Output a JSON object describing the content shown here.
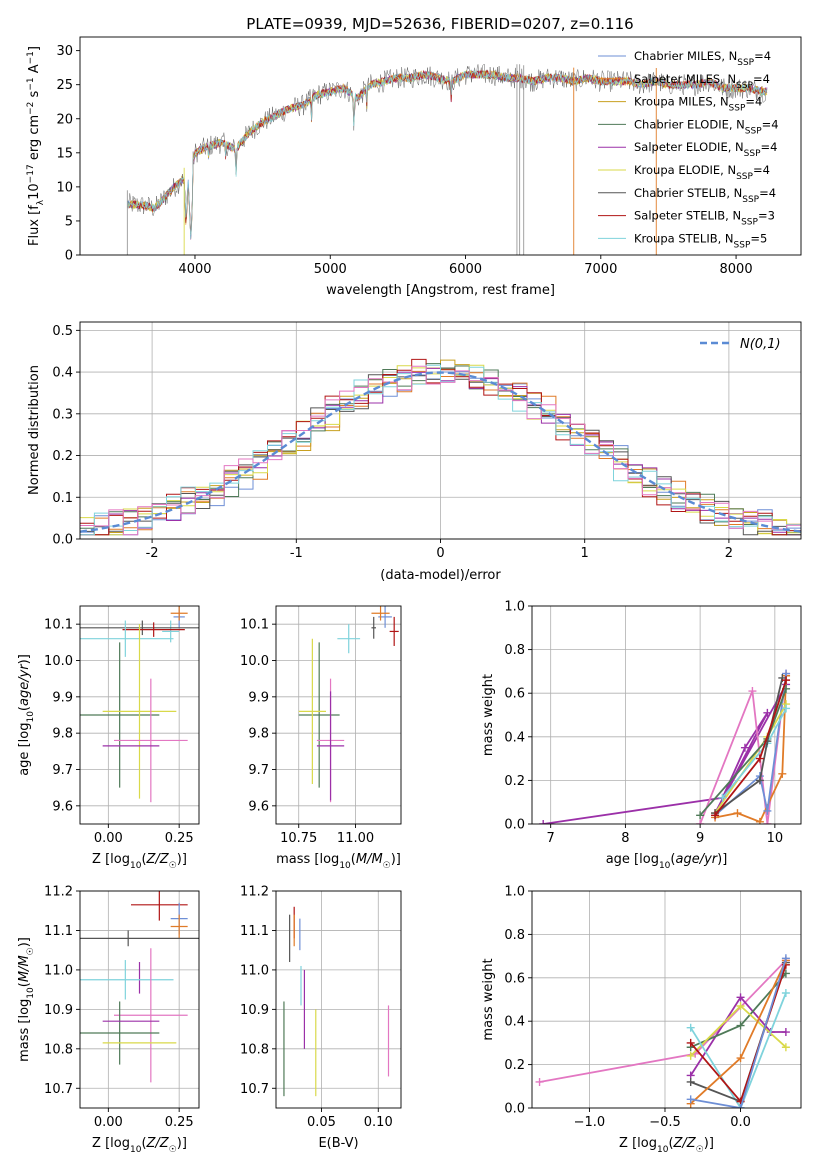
{
  "figure_title": "PLATE=0939, MJD=52636, FIBERID=0207, z=0.116",
  "colors": {
    "Chabrier MILES": "#6e8fd6",
    "Salpeter MILES": "#e07b28",
    "Kroupa MILES": "#c8a020",
    "Chabrier ELODIE": "#4f7a58",
    "Salpeter ELODIE": "#9b30a8",
    "Kroupa ELODIE": "#d9d94a",
    "Chabrier STELIB": "#555555",
    "Salpeter STELIB": "#b01515",
    "Kroupa STELIB": "#7fd3dc",
    "pink": "#e377c2",
    "normal_curve": "#5b8bd4"
  },
  "chart_data": [
    {
      "id": "spectrum",
      "type": "line",
      "xlabel": "wavelength [Angstrom, rest frame]",
      "ylabel": "Flux [f_λ 10^-17 erg cm^-2 s^-1 A^-1]",
      "xlim": [
        3150,
        8480
      ],
      "ylim": [
        0,
        32
      ],
      "xticks": [
        4000,
        5000,
        6000,
        7000,
        8000
      ],
      "yticks": [
        0,
        5,
        10,
        15,
        20,
        25,
        30
      ],
      "legend_placement": "top-right",
      "series": [
        {
          "name": "Chabrier MILES, N_SSP=4"
        },
        {
          "name": "Salpeter MILES, N_SSP=4"
        },
        {
          "name": "Kroupa MILES, N_SSP=4"
        },
        {
          "name": "Chabrier ELODIE, N_SSP=4"
        },
        {
          "name": "Salpeter ELODIE, N_SSP=4"
        },
        {
          "name": "Kroupa ELODIE, N_SSP=4"
        },
        {
          "name": "Chabrier STELIB, N_SSP=4"
        },
        {
          "name": "Salpeter STELIB, N_SSP=3"
        },
        {
          "name": "Kroupa STELIB, N_SSP=5"
        }
      ],
      "continuum": [
        [
          3500,
          7.5
        ],
        [
          3650,
          7.2
        ],
        [
          3700,
          6.8
        ],
        [
          3800,
          9.0
        ],
        [
          3900,
          11.0
        ],
        [
          3950,
          10.5
        ],
        [
          4000,
          15.0
        ],
        [
          4100,
          16.0
        ],
        [
          4200,
          16.5
        ],
        [
          4300,
          15.5
        ],
        [
          4400,
          18.0
        ],
        [
          4500,
          19.5
        ],
        [
          4600,
          20.5
        ],
        [
          4700,
          21.5
        ],
        [
          4800,
          22.0
        ],
        [
          4900,
          23.5
        ],
        [
          5000,
          24.0
        ],
        [
          5100,
          24.5
        ],
        [
          5200,
          23.0
        ],
        [
          5300,
          25.0
        ],
        [
          5400,
          25.5
        ],
        [
          5500,
          26.0
        ],
        [
          5600,
          26.0
        ],
        [
          5700,
          26.5
        ],
        [
          5800,
          26.0
        ],
        [
          5900,
          25.5
        ],
        [
          6000,
          26.5
        ],
        [
          6100,
          26.5
        ],
        [
          6200,
          26.5
        ],
        [
          6300,
          26.0
        ],
        [
          6400,
          26.0
        ],
        [
          6500,
          25.5
        ],
        [
          6600,
          26.0
        ],
        [
          6700,
          26.0
        ],
        [
          6800,
          25.5
        ],
        [
          6900,
          26.0
        ],
        [
          7000,
          25.5
        ],
        [
          7100,
          25.5
        ],
        [
          7200,
          25.5
        ],
        [
          7300,
          25.0
        ],
        [
          7400,
          25.5
        ],
        [
          7500,
          25.0
        ],
        [
          7600,
          25.0
        ],
        [
          7700,
          25.0
        ],
        [
          7800,
          25.5
        ],
        [
          7900,
          24.5
        ],
        [
          8000,
          24.5
        ],
        [
          8100,
          24.5
        ],
        [
          8200,
          24.0
        ],
        [
          8230,
          24.0
        ]
      ],
      "absorption_lines": [
        [
          3934,
          4
        ],
        [
          3969,
          2
        ],
        [
          4102,
          13.5
        ],
        [
          4227,
          14
        ],
        [
          4304,
          12
        ],
        [
          4861,
          19.5
        ],
        [
          5175,
          19
        ],
        [
          5270,
          22
        ],
        [
          5893,
          22.5
        ],
        [
          6563,
          24
        ]
      ],
      "spikes": [
        [
          3500,
          0
        ],
        [
          3920,
          0
        ],
        [
          6380,
          0
        ],
        [
          6400,
          0
        ],
        [
          6430,
          0
        ],
        [
          6800,
          0
        ],
        [
          7410,
          0
        ]
      ]
    },
    {
      "id": "residual_histogram",
      "type": "bar",
      "xlabel": "(data-model)/error",
      "ylabel": "Normed distribution",
      "xlim": [
        -2.5,
        2.5
      ],
      "ylim": [
        0,
        0.52
      ],
      "xticks": [
        -2,
        -1,
        0,
        1,
        2
      ],
      "yticks": [
        0.0,
        0.1,
        0.2,
        0.3,
        0.4,
        0.5
      ],
      "bin_width": 0.1,
      "normal_curve_label": "N(0,1)",
      "legend_placement": "top-right"
    },
    {
      "id": "age_vs_Z",
      "type": "scatter",
      "xlabel": "Z [log10(Z/Z☉)]",
      "ylabel": "age [log10(age/yr)]",
      "xlim": [
        -0.1,
        0.32
      ],
      "ylim": [
        9.55,
        10.15
      ],
      "xticks": [
        0.0,
        0.25
      ],
      "yticks": [
        9.6,
        9.7,
        9.8,
        9.9,
        10.0,
        10.1
      ],
      "points": [
        {
          "series": "Chabrier MILES",
          "x": 0.25,
          "xerr": 0.02,
          "y": 10.12,
          "yerr": 0.03
        },
        {
          "series": "Salpeter MILES",
          "x": 0.25,
          "xerr": 0.03,
          "y": 10.13,
          "yerr": 0.02
        },
        {
          "series": "Kroupa STELIB",
          "x": 0.22,
          "xerr": 0.03,
          "y": 10.08,
          "yerr": 0.03
        },
        {
          "series": "Chabrier STELIB",
          "x": 0.12,
          "xerr": 0.25,
          "y": 10.09,
          "yerr": 0.02
        },
        {
          "series": "Salpeter STELIB",
          "x": 0.16,
          "xerr": 0.11,
          "y": 10.085,
          "yerr": 0.02
        },
        {
          "series": "Kroupa STELIB",
          "x": 0.06,
          "xerr": 0.17,
          "y": 10.06,
          "yerr": 0.05
        },
        {
          "series": "Chabrier ELODIE",
          "x": 0.04,
          "xerr": 0.14,
          "y": 9.85,
          "yerr": 0.2
        },
        {
          "series": "Kroupa ELODIE",
          "x": 0.11,
          "xerr": 0.13,
          "y": 9.86,
          "yerr": 0.24
        },
        {
          "series": "pink",
          "x": 0.15,
          "xerr": 0.13,
          "y": 9.78,
          "yerr": 0.17
        },
        {
          "series": "Salpeter ELODIE",
          "x": 0.08,
          "xerr": 0.1,
          "y": 9.765,
          "yerr": 0.0
        }
      ]
    },
    {
      "id": "age_vs_mass",
      "type": "scatter",
      "xlabel": "mass [log10(M/M☉)]",
      "ylabel": "",
      "xlim": [
        10.65,
        11.2
      ],
      "ylim": [
        9.55,
        10.15
      ],
      "xticks": [
        10.75,
        11.0
      ],
      "yticks": [
        9.6,
        9.7,
        9.8,
        9.9,
        10.0,
        10.1
      ],
      "points": [
        {
          "series": "Chabrier MILES",
          "x": 11.13,
          "xerr": 0.03,
          "y": 10.12,
          "yerr": 0.03
        },
        {
          "series": "Salpeter MILES",
          "x": 11.11,
          "xerr": 0.04,
          "y": 10.13,
          "yerr": 0.02
        },
        {
          "series": "Salpeter STELIB",
          "x": 11.17,
          "xerr": 0.02,
          "y": 10.08,
          "yerr": 0.04
        },
        {
          "series": "Chabrier STELIB",
          "x": 11.08,
          "xerr": 0.01,
          "y": 10.09,
          "yerr": 0.03
        },
        {
          "series": "Kroupa STELIB",
          "x": 10.97,
          "xerr": 0.05,
          "y": 10.06,
          "yerr": 0.04
        },
        {
          "series": "Chabrier ELODIE",
          "x": 10.84,
          "xerr": 0.09,
          "y": 9.85,
          "yerr": 0.2
        },
        {
          "series": "Kroupa ELODIE",
          "x": 10.81,
          "xerr": 0.06,
          "y": 9.86,
          "yerr": 0.2
        },
        {
          "series": "pink",
          "x": 10.89,
          "xerr": 0.06,
          "y": 9.78,
          "yerr": 0.17
        },
        {
          "series": "Salpeter ELODIE",
          "x": 10.89,
          "xerr": 0.06,
          "y": 9.765,
          "yerr": 0.15
        }
      ]
    },
    {
      "id": "mass_weight_vs_age",
      "type": "line",
      "xlabel": "age [log10(age/yr)]",
      "ylabel": "mass weight",
      "xlim": [
        6.75,
        10.35
      ],
      "ylim": [
        0,
        1.0
      ],
      "xticks": [
        7,
        8,
        9,
        10
      ],
      "yticks": [
        0.0,
        0.2,
        0.4,
        0.6,
        0.8,
        1.0
      ],
      "series": [
        {
          "color_key": "Salpeter ELODIE",
          "points": [
            [
              6.9,
              0.0
            ],
            [
              9.3,
              0.12
            ],
            [
              9.6,
              0.35
            ],
            [
              9.9,
              0.51
            ],
            [
              9.2,
              0.05
            ],
            [
              10.15,
              0.64
            ]
          ]
        },
        {
          "color_key": "pink",
          "points": [
            [
              9.0,
              0.0
            ],
            [
              9.7,
              0.61
            ],
            [
              9.9,
              0.0
            ],
            [
              10.15,
              0.69
            ]
          ]
        },
        {
          "color_key": "Salpeter MILES",
          "points": [
            [
              9.2,
              0.03
            ],
            [
              9.5,
              0.05
            ],
            [
              9.8,
              0.01
            ],
            [
              10.1,
              0.23
            ],
            [
              10.15,
              0.68
            ]
          ]
        },
        {
          "color_key": "Chabrier MILES",
          "points": [
            [
              9.2,
              0.04
            ],
            [
              9.8,
              0.22
            ],
            [
              9.9,
              0.06
            ],
            [
              10.15,
              0.69
            ]
          ]
        },
        {
          "color_key": "Kroupa ELODIE",
          "points": [
            [
              9.2,
              0.05
            ],
            [
              9.9,
              0.4
            ],
            [
              10.15,
              0.55
            ]
          ]
        },
        {
          "color_key": "Chabrier ELODIE",
          "points": [
            [
              9.0,
              0.04
            ],
            [
              9.9,
              0.39
            ],
            [
              10.15,
              0.62
            ]
          ]
        },
        {
          "color_key": "Kroupa STELIB",
          "points": [
            [
              9.3,
              0.12
            ],
            [
              9.9,
              0.37
            ],
            [
              10.15,
              0.53
            ]
          ]
        },
        {
          "color_key": "Chabrier STELIB",
          "points": [
            [
              9.2,
              0.05
            ],
            [
              9.8,
              0.2
            ],
            [
              9.9,
              0.38
            ],
            [
              10.1,
              0.67
            ]
          ]
        },
        {
          "color_key": "Salpeter STELIB",
          "points": [
            [
              9.2,
              0.04
            ],
            [
              9.8,
              0.3
            ],
            [
              10.15,
              0.66
            ]
          ]
        }
      ]
    },
    {
      "id": "mass_vs_Z",
      "type": "scatter",
      "xlabel": "Z [log10(Z/Z☉)]",
      "ylabel": "mass [log10(M/M☉)]",
      "xlim": [
        -0.1,
        0.32
      ],
      "ylim": [
        10.65,
        11.2
      ],
      "xticks": [
        0.0,
        0.25
      ],
      "yticks": [
        10.7,
        10.8,
        10.9,
        11.0,
        11.1,
        11.2
      ],
      "points": [
        {
          "series": "Salpeter STELIB",
          "x": 0.18,
          "xerr": 0.1,
          "y": 11.165,
          "yerr": 0.04
        },
        {
          "series": "Chabrier MILES",
          "x": 0.25,
          "xerr": 0.03,
          "y": 11.13,
          "yerr": 0.04
        },
        {
          "series": "Salpeter MILES",
          "x": 0.25,
          "xerr": 0.03,
          "y": 11.11,
          "yerr": 0.03
        },
        {
          "series": "Chabrier STELIB",
          "x": 0.07,
          "xerr": 0.25,
          "y": 11.08,
          "yerr": 0.02
        },
        {
          "series": "Salpeter ELODIE",
          "x": 0.11,
          "xerr": 0.0,
          "y": 10.98,
          "yerr": 0.04
        },
        {
          "series": "Kroupa STELIB",
          "x": 0.06,
          "xerr": 0.17,
          "y": 10.975,
          "yerr": 0.05
        },
        {
          "series": "pink",
          "x": 0.15,
          "xerr": 0.13,
          "y": 10.885,
          "yerr": 0.17
        },
        {
          "series": "Chabrier ELODIE",
          "x": 0.04,
          "xerr": 0.14,
          "y": 10.84,
          "yerr": 0.08
        },
        {
          "series": "Kroupa ELODIE",
          "x": 0.11,
          "xerr": 0.13,
          "y": 10.815,
          "yerr": 0.0
        },
        {
          "series": "Salpeter ELODIE",
          "x": 0.08,
          "xerr": 0.1,
          "y": 10.87,
          "yerr": 0.0
        }
      ]
    },
    {
      "id": "mass_vs_ebv",
      "type": "scatter",
      "xlabel": "E(B-V)",
      "ylabel": "",
      "xlim": [
        0.01,
        0.12
      ],
      "ylim": [
        10.65,
        11.2
      ],
      "xticks": [
        0.05,
        0.1
      ],
      "yticks": [
        10.7,
        10.8,
        10.9,
        11.0,
        11.1,
        11.2
      ],
      "points": [
        {
          "series": "Salpeter STELIB",
          "x": 0.026,
          "y": 11.12,
          "yerr": 0.04
        },
        {
          "series": "Chabrier MILES",
          "x": 0.031,
          "y": 11.09,
          "yerr": 0.04
        },
        {
          "series": "Salpeter MILES",
          "x": 0.026,
          "y": 11.1,
          "yerr": 0.04
        },
        {
          "series": "Chabrier STELIB",
          "x": 0.022,
          "y": 11.08,
          "yerr": 0.06
        },
        {
          "series": "Kroupa STELIB",
          "x": 0.032,
          "y": 10.96,
          "yerr": 0.05
        },
        {
          "series": "Salpeter ELODIE",
          "x": 0.035,
          "y": 10.9,
          "yerr": 0.1
        },
        {
          "series": "Chabrier ELODIE",
          "x": 0.017,
          "y": 10.8,
          "yerr": 0.12
        },
        {
          "series": "Kroupa ELODIE",
          "x": 0.045,
          "y": 10.79,
          "yerr": 0.11
        },
        {
          "series": "pink",
          "x": 0.109,
          "y": 10.82,
          "yerr": 0.09
        }
      ]
    },
    {
      "id": "mass_weight_vs_Z",
      "type": "line",
      "xlabel": "Z [log10(Z/Z☉)]",
      "ylabel": "mass weight",
      "xlim": [
        -1.38,
        0.4
      ],
      "ylim": [
        0,
        1.0
      ],
      "xticks": [
        -1.0,
        -0.5,
        0.0
      ],
      "yticks": [
        0.0,
        0.2,
        0.4,
        0.6,
        0.8,
        1.0
      ],
      "series": [
        {
          "color_key": "pink",
          "points": [
            [
              -1.33,
              0.12
            ],
            [
              -0.3,
              0.25
            ],
            [
              0.3,
              0.68
            ]
          ]
        },
        {
          "color_key": "Salpeter ELODIE",
          "points": [
            [
              -0.33,
              0.15
            ],
            [
              0.0,
              0.51
            ],
            [
              0.2,
              0.35
            ],
            [
              0.3,
              0.35
            ]
          ]
        },
        {
          "color_key": "Chabrier ELODIE",
          "points": [
            [
              -0.33,
              0.28
            ],
            [
              0.0,
              0.38
            ],
            [
              0.3,
              0.62
            ]
          ]
        },
        {
          "color_key": "Kroupa ELODIE",
          "points": [
            [
              -0.33,
              0.24
            ],
            [
              0.0,
              0.47
            ],
            [
              0.3,
              0.28
            ]
          ]
        },
        {
          "color_key": "Kroupa STELIB",
          "points": [
            [
              -0.33,
              0.37
            ],
            [
              0.0,
              0.0
            ],
            [
              0.3,
              0.53
            ]
          ]
        },
        {
          "color_key": "Chabrier STELIB",
          "points": [
            [
              -0.33,
              0.12
            ],
            [
              0.0,
              0.03
            ],
            [
              0.3,
              0.67
            ]
          ]
        },
        {
          "color_key": "Salpeter STELIB",
          "points": [
            [
              -0.33,
              0.3
            ],
            [
              0.0,
              0.03
            ],
            [
              0.3,
              0.66
            ]
          ]
        },
        {
          "color_key": "Salpeter MILES",
          "points": [
            [
              -0.33,
              0.02
            ],
            [
              0.0,
              0.23
            ],
            [
              0.3,
              0.68
            ]
          ]
        },
        {
          "color_key": "Chabrier MILES",
          "points": [
            [
              -0.33,
              0.04
            ],
            [
              0.0,
              0.0
            ],
            [
              0.3,
              0.69
            ]
          ]
        }
      ]
    }
  ]
}
